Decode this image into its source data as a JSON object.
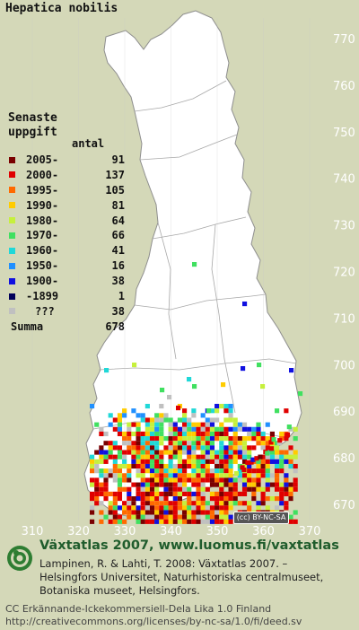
{
  "title": "Hepatica nobilis",
  "legend": {
    "heading_line1": "Senaste",
    "heading_line2": "uppgift",
    "count_header": "antal",
    "entries": [
      {
        "label": "2005-",
        "count": "91",
        "color": "#7a0000"
      },
      {
        "label": "2000-",
        "count": "137",
        "color": "#e00000"
      },
      {
        "label": "1995-",
        "count": "105",
        "color": "#ff6a00"
      },
      {
        "label": "1990-",
        "count": "81",
        "color": "#ffcc00"
      },
      {
        "label": "1980-",
        "count": "64",
        "color": "#c6f03c"
      },
      {
        "label": "1970-",
        "count": "66",
        "color": "#40e060"
      },
      {
        "label": "1960-",
        "count": "41",
        "color": "#20d8d8"
      },
      {
        "label": "1950-",
        "count": "16",
        "color": "#2090ff"
      },
      {
        "label": "1900-",
        "count": "38",
        "color": "#1010e0"
      },
      {
        "label": "-1899",
        "count": "1",
        "color": "#00005a"
      },
      {
        "label": "???",
        "count": "38",
        "color": "#c0c0c0"
      }
    ],
    "total_label": "Summa",
    "total_value": "678"
  },
  "axes": {
    "x_ticks": [
      "310",
      "320",
      "330",
      "340",
      "350",
      "360",
      "370"
    ],
    "y_ticks": [
      "770",
      "760",
      "750",
      "740",
      "730",
      "720",
      "710",
      "700",
      "690",
      "680",
      "670"
    ]
  },
  "cc_badge": "(cc) BY-NC-SA",
  "footer": {
    "brand": "Växtatlas 2007, www.luomus.fi/vaxtatlas",
    "citation_line1": "Lampinen, R. & Lahti, T. 2008: Växtatlas 2007. –",
    "citation_line2": "Helsingfors Universitet, Naturhistoriska centralmuseet,",
    "citation_line3": "Botaniska museet, Helsingfors.",
    "license_line1": "CC Erkännande-Ickekommersiell-Dela Lika 1.0 Finland",
    "license_line2": "http://creativecommons.org/licenses/by-nc-sa/1.0/fi/deed.sv"
  },
  "colors": {
    "background": "#d4d8b8",
    "land": "#ffffff",
    "boundary": "#9a9a9a",
    "axis_label": "#ffffff",
    "brand": "#1f5c2c"
  }
}
